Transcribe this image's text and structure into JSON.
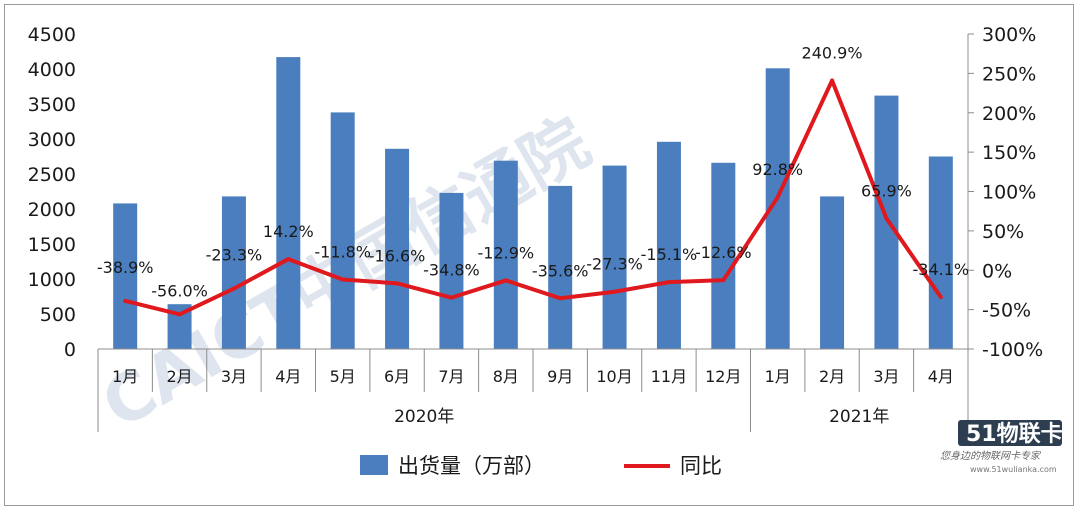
{
  "chart_data": {
    "type": "bar+line",
    "categories": [
      "1月",
      "2月",
      "3月",
      "4月",
      "5月",
      "6月",
      "7月",
      "8月",
      "9月",
      "10月",
      "11月",
      "12月",
      "1月",
      "2月",
      "3月",
      "4月"
    ],
    "year_groups": [
      {
        "label": "2020年",
        "start": 0,
        "end": 11
      },
      {
        "label": "2021年",
        "start": 12,
        "end": 15
      }
    ],
    "series": [
      {
        "name": "出货量（万部）",
        "type": "bar",
        "axis": "left",
        "color": "#4a7ebf",
        "values": [
          2080,
          640,
          2180,
          4170,
          3380,
          2860,
          2230,
          2690,
          2330,
          2620,
          2960,
          2660,
          4010,
          2180,
          3620,
          2750
        ]
      },
      {
        "name": "同比",
        "type": "line",
        "axis": "right",
        "color": "#e0191e",
        "values": [
          -38.9,
          -56.0,
          -23.3,
          14.2,
          -11.8,
          -16.6,
          -34.8,
          -12.9,
          -35.6,
          -27.3,
          -15.1,
          -12.6,
          92.8,
          240.9,
          65.9,
          -34.1
        ],
        "labels": [
          "-38.9%",
          "-56.0%",
          "-23.3%",
          "14.2%",
          "-11.8%",
          "-16.6%",
          "-34.8%",
          "-12.9%",
          "-35.6%",
          "-27.3%",
          "-15.1%",
          "-12.6%",
          "92.8%",
          "240.9%",
          "65.9%",
          "-34.1%"
        ]
      }
    ],
    "y_left": {
      "min": 0,
      "max": 4500,
      "step": 500,
      "ticks": [
        "0",
        "500",
        "1000",
        "1500",
        "2000",
        "2500",
        "3000",
        "3500",
        "4000",
        "4500"
      ]
    },
    "y_right": {
      "min": -100,
      "max": 300,
      "step": 50,
      "ticks": [
        "-100%",
        "-50%",
        "0%",
        "50%",
        "100%",
        "150%",
        "200%",
        "250%",
        "300%"
      ]
    },
    "grid": false,
    "legend": "bottom"
  },
  "watermark": {
    "text": "CAICT中国信通院"
  },
  "brand": {
    "logo_text": "51物联卡",
    "slogan": "您身边的物联网卡专家",
    "url": "www.51wulianka.com"
  }
}
